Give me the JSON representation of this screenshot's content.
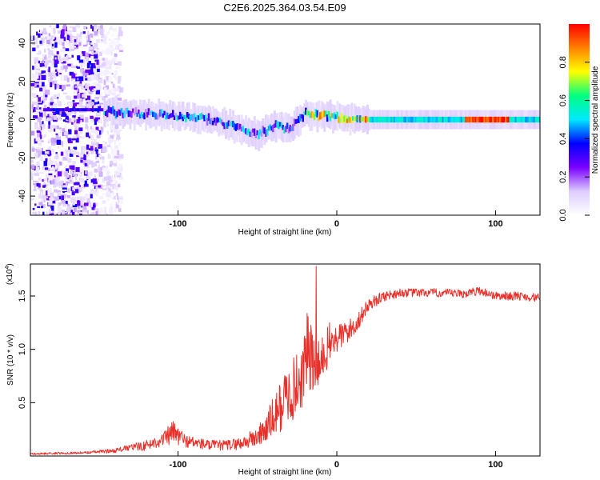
{
  "title": "C2E6.2025.364.03.54.E09",
  "chart_data": [
    {
      "type": "heatmap",
      "name": "spectrogram",
      "xlabel": "Height of straight line (km)",
      "ylabel": "Frequency (Hz)",
      "xlim": [
        -193,
        128
      ],
      "ylim": [
        -50,
        50
      ],
      "x_ticks": [
        -100,
        0,
        100
      ],
      "y_ticks": [
        -40,
        -20,
        0,
        20,
        40
      ],
      "colorbar": {
        "label": "Normalized spectral amplitude",
        "range": [
          0,
          1
        ],
        "ticks": [
          0.0,
          0.2,
          0.4,
          0.6,
          0.8
        ],
        "stops": [
          "#ffffff",
          "#ddccff",
          "#7a00ff",
          "#0000ff",
          "#00e8ff",
          "#00ff80",
          "#ffff00",
          "#ff8000",
          "#ff0000"
        ]
      },
      "ridge": {
        "x": [
          -145,
          -120,
          -100,
          -80,
          -60,
          -50,
          -40,
          -30,
          -20,
          -10,
          0,
          20,
          60,
          100,
          128
        ],
        "freq_hz": [
          4,
          3,
          2,
          0,
          -5,
          -8,
          -3,
          -5,
          3,
          2,
          1,
          0,
          0,
          0,
          0
        ]
      },
      "noise_band": {
        "x_from": -193,
        "x_to": -145
      }
    },
    {
      "type": "line",
      "name": "snr",
      "xlabel": "Height of straight line (km)",
      "ylabel": "SNR (10 * v/v)",
      "multiplier": "(x10",
      "multiplier_exp": "4",
      "xlim": [
        -193,
        128
      ],
      "ylim": [
        0,
        1.8
      ],
      "x_ticks": [
        -100,
        0,
        100
      ],
      "y_ticks": [
        0.5,
        1.0,
        1.5
      ],
      "color": "#e8302a",
      "series": {
        "x": [
          -193,
          -160,
          -140,
          -130,
          -120,
          -110,
          -103,
          -95,
          -80,
          -70,
          -60,
          -50,
          -45,
          -38,
          -32,
          -26,
          -22,
          -20,
          -18,
          -16,
          -14,
          -12,
          -10,
          -8,
          -5,
          0,
          5,
          10,
          15,
          20,
          30,
          40,
          60,
          80,
          90,
          100,
          115,
          128
        ],
        "mean": [
          0.02,
          0.03,
          0.05,
          0.08,
          0.1,
          0.15,
          0.22,
          0.14,
          0.1,
          0.1,
          0.12,
          0.18,
          0.25,
          0.4,
          0.55,
          0.65,
          0.75,
          0.9,
          1.0,
          0.9,
          0.8,
          0.8,
          0.85,
          0.95,
          1.05,
          1.1,
          1.15,
          1.2,
          1.3,
          1.42,
          1.5,
          1.53,
          1.53,
          1.52,
          1.55,
          1.5,
          1.5,
          1.48
        ],
        "jitter": [
          0.01,
          0.01,
          0.02,
          0.03,
          0.05,
          0.06,
          0.12,
          0.06,
          0.05,
          0.05,
          0.06,
          0.1,
          0.14,
          0.22,
          0.28,
          0.3,
          0.32,
          0.34,
          0.4,
          0.34,
          0.3,
          0.28,
          0.25,
          0.22,
          0.2,
          0.15,
          0.12,
          0.1,
          0.08,
          0.06,
          0.05,
          0.04,
          0.04,
          0.04,
          0.04,
          0.04,
          0.04,
          0.04
        ],
        "peak": {
          "x": -13,
          "y": 1.78
        }
      }
    }
  ]
}
